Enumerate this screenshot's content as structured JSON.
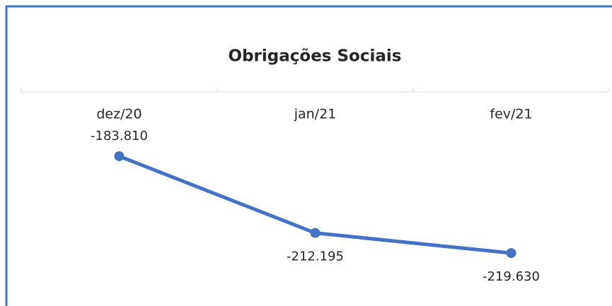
{
  "chart_data": {
    "type": "line",
    "title": "Obrigações Sociais",
    "categories": [
      "dez/20",
      "jan/21",
      "fev/21"
    ],
    "series": [
      {
        "name": "Obrigações Sociais",
        "color": "#4472c4",
        "values": [
          -183810,
          -212195,
          -219630
        ],
        "value_labels": [
          "-183.810",
          "-212.195",
          "-219.630"
        ]
      }
    ],
    "ylim": [
      -240000,
      -160000
    ]
  }
}
